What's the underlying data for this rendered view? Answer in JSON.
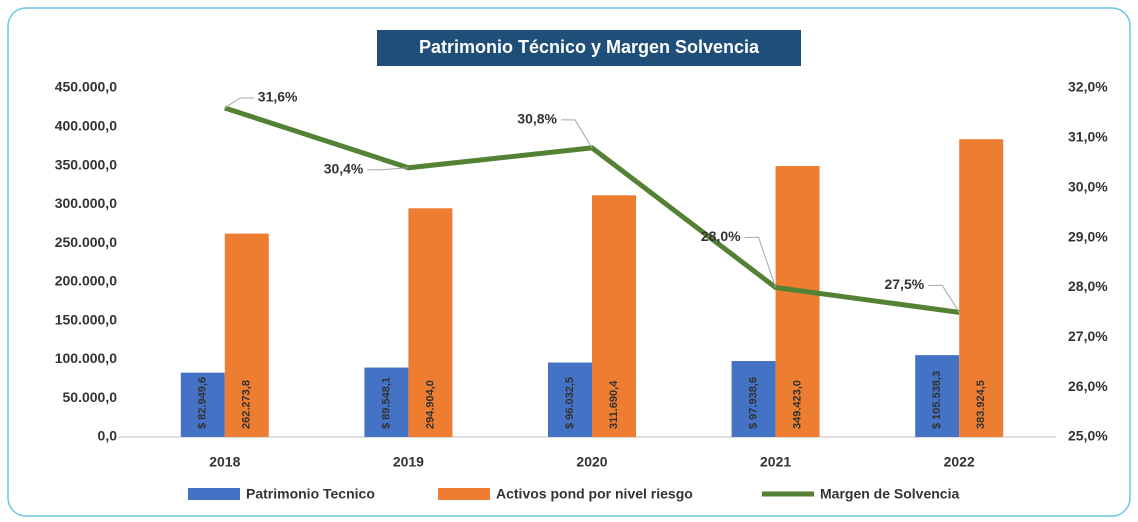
{
  "chart_data": {
    "type": "bar_line",
    "title": "Patrimonio Técnico y Margen Solvencia",
    "categories": [
      "2018",
      "2019",
      "2020",
      "2021",
      "2022"
    ],
    "series": [
      {
        "name": "Patrimonio Tecnico",
        "type": "bar",
        "color": "#4472c4",
        "values": [
          82949.6,
          89548.1,
          96032.5,
          97938.6,
          105538.3
        ],
        "value_labels": [
          "$ 82.949,6",
          "$ 89.548,1",
          "$ 96.032,5",
          "$ 97.938,6",
          "$ 105.538,3"
        ]
      },
      {
        "name": "Activos pond por nivel riesgo",
        "type": "bar",
        "color": "#ed7d31",
        "values": [
          262273.8,
          294904.0,
          311690.4,
          349423.0,
          383924.5
        ],
        "value_labels": [
          "262.273,8",
          "294.904,0",
          "311.690,4",
          "349.423,0",
          "383.924,5"
        ]
      },
      {
        "name": "Margen de Solvencia",
        "type": "line",
        "axis": "y2",
        "color": "#548235",
        "values": [
          31.6,
          30.4,
          30.8,
          28.0,
          27.5
        ],
        "value_labels": [
          "31,6%",
          "30,4%",
          "30,8%",
          "28,0%",
          "27,5%"
        ]
      }
    ],
    "ylim": [
      0,
      450000
    ],
    "yticks": [
      {
        "value": 0,
        "label": "0,0"
      },
      {
        "value": 50000,
        "label": "50.000,0"
      },
      {
        "value": 100000,
        "label": "100.000,0"
      },
      {
        "value": 150000,
        "label": "150.000,0"
      },
      {
        "value": 200000,
        "label": "200.000,0"
      },
      {
        "value": 250000,
        "label": "250.000,0"
      },
      {
        "value": 300000,
        "label": "300.000,0"
      },
      {
        "value": 350000,
        "label": "350.000,0"
      },
      {
        "value": 400000,
        "label": "400.000,0"
      },
      {
        "value": 450000,
        "label": "450.000,0"
      }
    ],
    "y2lim": [
      25,
      32
    ],
    "y2ticks": [
      {
        "value": 25,
        "label": "25,0%"
      },
      {
        "value": 26,
        "label": "26,0%"
      },
      {
        "value": 27,
        "label": "27,0%"
      },
      {
        "value": 28,
        "label": "28,0%"
      },
      {
        "value": 29,
        "label": "29,0%"
      },
      {
        "value": 30,
        "label": "30,0%"
      },
      {
        "value": 31,
        "label": "31,0%"
      },
      {
        "value": 32,
        "label": "32,0%"
      }
    ],
    "legend": "bottom"
  }
}
